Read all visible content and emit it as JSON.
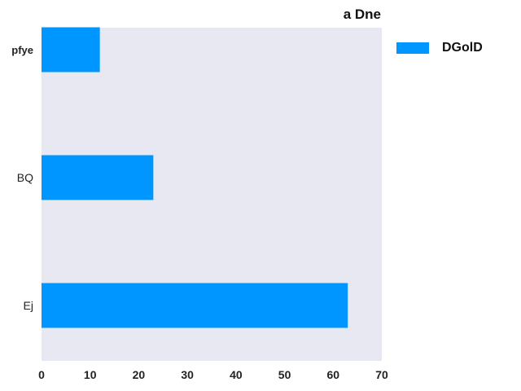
{
  "chart_data": {
    "type": "bar",
    "orientation": "horizontal",
    "title": "a Dne",
    "categories": [
      "pfye",
      "BQ",
      "Ej"
    ],
    "series": [
      {
        "name": "DGolD",
        "values": [
          12,
          23,
          63
        ],
        "color": "#0096ff"
      }
    ],
    "xlabel": "",
    "ylabel": "",
    "xlim": [
      0,
      70
    ],
    "xticks": [
      0,
      10,
      20,
      30,
      40,
      50,
      60,
      70
    ],
    "grid": false,
    "background": "#e8e8f2",
    "legend_position": "top-right-outside"
  }
}
